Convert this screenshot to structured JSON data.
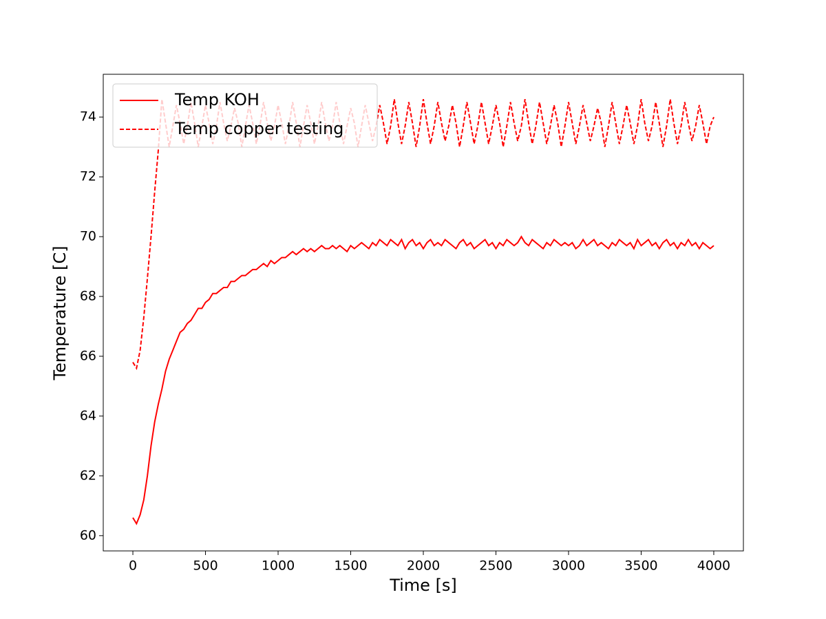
{
  "chart_data": {
    "type": "line",
    "xlabel": "Time [s]",
    "ylabel": "Temperature [C]",
    "x": [
      0,
      25,
      50,
      75,
      100,
      125,
      150,
      175,
      200,
      225,
      250,
      275,
      300,
      325,
      350,
      375,
      400,
      425,
      450,
      475,
      500,
      525,
      550,
      575,
      600,
      625,
      650,
      675,
      700,
      725,
      750,
      775,
      800,
      825,
      850,
      875,
      900,
      925,
      950,
      975,
      1000,
      1025,
      1050,
      1075,
      1100,
      1125,
      1150,
      1175,
      1200,
      1225,
      1250,
      1275,
      1300,
      1325,
      1350,
      1375,
      1400,
      1425,
      1450,
      1475,
      1500,
      1525,
      1550,
      1575,
      1600,
      1625,
      1650,
      1675,
      1700,
      1725,
      1750,
      1775,
      1800,
      1825,
      1850,
      1875,
      1900,
      1925,
      1950,
      1975,
      2000,
      2025,
      2050,
      2075,
      2100,
      2125,
      2150,
      2175,
      2200,
      2225,
      2250,
      2275,
      2300,
      2325,
      2350,
      2375,
      2400,
      2425,
      2450,
      2475,
      2500,
      2525,
      2550,
      2575,
      2600,
      2625,
      2650,
      2675,
      2700,
      2725,
      2750,
      2775,
      2800,
      2825,
      2850,
      2875,
      2900,
      2925,
      2950,
      2975,
      3000,
      3025,
      3050,
      3075,
      3100,
      3125,
      3150,
      3175,
      3200,
      3225,
      3250,
      3275,
      3300,
      3325,
      3350,
      3375,
      3400,
      3425,
      3450,
      3475,
      3500,
      3525,
      3550,
      3575,
      3600,
      3625,
      3650,
      3675,
      3700,
      3725,
      3750,
      3775,
      3800,
      3825,
      3850,
      3875,
      3900,
      3925,
      3950,
      3975,
      4000
    ],
    "series": [
      {
        "name": "Temp KOH",
        "color": "#ff0000",
        "dash": "solid",
        "values": [
          60.6,
          60.4,
          60.7,
          61.2,
          62.0,
          63.0,
          63.8,
          64.4,
          64.9,
          65.5,
          65.9,
          66.2,
          66.5,
          66.8,
          66.9,
          67.1,
          67.2,
          67.4,
          67.6,
          67.6,
          67.8,
          67.9,
          68.1,
          68.1,
          68.2,
          68.3,
          68.3,
          68.5,
          68.5,
          68.6,
          68.7,
          68.7,
          68.8,
          68.9,
          68.9,
          69.0,
          69.1,
          69.0,
          69.2,
          69.1,
          69.2,
          69.3,
          69.3,
          69.4,
          69.5,
          69.4,
          69.5,
          69.6,
          69.5,
          69.6,
          69.5,
          69.6,
          69.7,
          69.6,
          69.6,
          69.7,
          69.6,
          69.7,
          69.6,
          69.5,
          69.7,
          69.6,
          69.7,
          69.8,
          69.7,
          69.6,
          69.8,
          69.7,
          69.9,
          69.8,
          69.7,
          69.9,
          69.8,
          69.7,
          69.9,
          69.6,
          69.8,
          69.9,
          69.7,
          69.8,
          69.6,
          69.8,
          69.9,
          69.7,
          69.8,
          69.7,
          69.9,
          69.8,
          69.7,
          69.6,
          69.8,
          69.9,
          69.7,
          69.8,
          69.6,
          69.7,
          69.8,
          69.9,
          69.7,
          69.8,
          69.6,
          69.8,
          69.7,
          69.9,
          69.8,
          69.7,
          69.8,
          70.0,
          69.8,
          69.7,
          69.9,
          69.8,
          69.7,
          69.6,
          69.8,
          69.7,
          69.9,
          69.8,
          69.7,
          69.8,
          69.7,
          69.8,
          69.6,
          69.7,
          69.9,
          69.7,
          69.8,
          69.9,
          69.7,
          69.8,
          69.7,
          69.6,
          69.8,
          69.7,
          69.9,
          69.8,
          69.7,
          69.8,
          69.6,
          69.9,
          69.7,
          69.8,
          69.9,
          69.7,
          69.8,
          69.6,
          69.8,
          69.9,
          69.7,
          69.8,
          69.6,
          69.8,
          69.7,
          69.9,
          69.7,
          69.8,
          69.6,
          69.8,
          69.7,
          69.6,
          69.7
        ]
      },
      {
        "name": "Temp copper testing",
        "color": "#ff0000",
        "dash": "dashed",
        "values": [
          65.8,
          65.6,
          66.2,
          67.3,
          68.6,
          70.0,
          71.5,
          72.9,
          74.6,
          73.8,
          73.0,
          73.7,
          74.4,
          73.8,
          73.1,
          73.7,
          74.5,
          73.8,
          73.0,
          73.7,
          74.4,
          73.8,
          73.1,
          73.7,
          74.5,
          73.8,
          73.2,
          73.7,
          74.3,
          73.8,
          73.0,
          73.7,
          74.4,
          73.8,
          73.1,
          73.7,
          74.5,
          73.8,
          73.2,
          73.7,
          74.4,
          73.8,
          73.1,
          73.7,
          74.5,
          73.8,
          73.0,
          73.7,
          74.4,
          73.8,
          73.1,
          73.7,
          74.5,
          73.8,
          73.2,
          73.7,
          74.5,
          73.8,
          73.1,
          73.7,
          74.3,
          73.8,
          73.0,
          73.7,
          74.4,
          73.8,
          73.2,
          73.7,
          74.4,
          73.8,
          73.1,
          73.7,
          74.6,
          73.8,
          73.1,
          73.7,
          74.5,
          73.8,
          73.0,
          73.7,
          74.6,
          73.8,
          73.1,
          73.7,
          74.5,
          73.8,
          73.2,
          73.7,
          74.4,
          73.8,
          73.0,
          73.7,
          74.5,
          73.8,
          73.1,
          73.7,
          74.5,
          73.8,
          73.1,
          73.7,
          74.4,
          73.8,
          73.0,
          73.7,
          74.5,
          73.8,
          73.2,
          73.7,
          74.6,
          73.8,
          73.1,
          73.7,
          74.5,
          73.8,
          73.1,
          73.7,
          74.4,
          73.8,
          73.0,
          73.7,
          74.5,
          73.8,
          73.1,
          73.7,
          74.4,
          73.8,
          73.2,
          73.7,
          74.3,
          73.8,
          73.0,
          73.7,
          74.5,
          73.8,
          73.1,
          73.7,
          74.4,
          73.8,
          73.1,
          73.7,
          74.6,
          73.8,
          73.2,
          73.7,
          74.5,
          73.8,
          73.0,
          73.7,
          74.6,
          73.8,
          73.1,
          73.7,
          74.5,
          73.8,
          73.2,
          73.7,
          74.4,
          73.8,
          73.1,
          73.7,
          74.0
        ]
      }
    ],
    "xlim": [
      -204,
      4204
    ],
    "ylim": [
      59.49,
      75.43
    ],
    "xticks": [
      0,
      500,
      1000,
      1500,
      2000,
      2500,
      3000,
      3500,
      4000
    ],
    "yticks": [
      60,
      62,
      64,
      66,
      68,
      70,
      72,
      74
    ],
    "legend": "upper left"
  }
}
